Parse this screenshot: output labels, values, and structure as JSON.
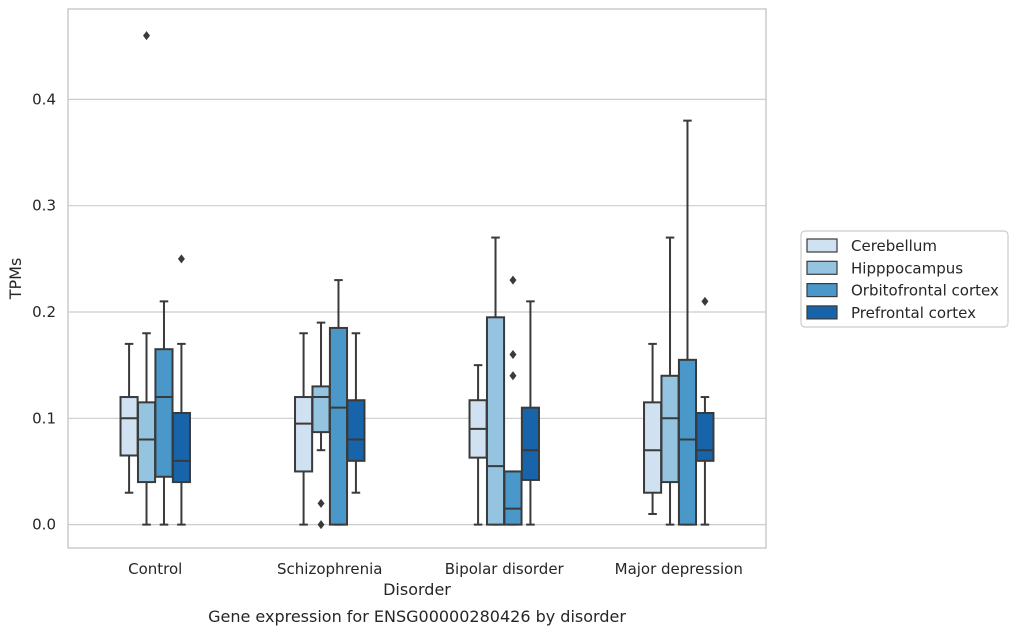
{
  "chart_data": {
    "type": "box",
    "xlabel": "Disorder",
    "ylabel": "TPMs",
    "caption": "Gene expression for ENSG00000280426 by disorder",
    "ylim": [
      -0.022,
      0.485
    ],
    "yticks": [
      "0.0",
      "0.1",
      "0.2",
      "0.3",
      "0.4"
    ],
    "ytick_values": [
      0.0,
      0.1,
      0.2,
      0.3,
      0.4
    ],
    "grid": "horizontal",
    "legend_position": "right",
    "categories": [
      "Control",
      "Schizophrenia",
      "Bipolar disorder",
      "Major depression"
    ],
    "series": [
      {
        "name": "Cerebellum",
        "color": "#d0e1f2",
        "boxes": [
          {
            "whislo": 0.03,
            "q1": 0.065,
            "med": 0.1,
            "q3": 0.12,
            "whishi": 0.17,
            "fliers": []
          },
          {
            "whislo": 0.0,
            "q1": 0.05,
            "med": 0.095,
            "q3": 0.12,
            "whishi": 0.18,
            "fliers": []
          },
          {
            "whislo": 0.0,
            "q1": 0.063,
            "med": 0.09,
            "q3": 0.117,
            "whishi": 0.15,
            "fliers": []
          },
          {
            "whislo": 0.01,
            "q1": 0.03,
            "med": 0.07,
            "q3": 0.115,
            "whishi": 0.17,
            "fliers": []
          }
        ]
      },
      {
        "name": "Hipppocampus",
        "color": "#94c4df",
        "boxes": [
          {
            "whislo": 0.0,
            "q1": 0.04,
            "med": 0.08,
            "q3": 0.115,
            "whishi": 0.18,
            "fliers": [
              0.46
            ]
          },
          {
            "whislo": 0.07,
            "q1": 0.087,
            "med": 0.12,
            "q3": 0.13,
            "whishi": 0.19,
            "fliers": [
              0.02,
              0.0
            ]
          },
          {
            "whislo": 0.0,
            "q1": 0.0,
            "med": 0.055,
            "q3": 0.195,
            "whishi": 0.27,
            "fliers": []
          },
          {
            "whislo": 0.0,
            "q1": 0.04,
            "med": 0.1,
            "q3": 0.14,
            "whishi": 0.27,
            "fliers": []
          }
        ]
      },
      {
        "name": "Orbitofrontal cortex",
        "color": "#4a98c9",
        "boxes": [
          {
            "whislo": 0.0,
            "q1": 0.045,
            "med": 0.12,
            "q3": 0.165,
            "whishi": 0.21,
            "fliers": []
          },
          {
            "whislo": 0.0,
            "q1": 0.0,
            "med": 0.11,
            "q3": 0.185,
            "whishi": 0.23,
            "fliers": []
          },
          {
            "whislo": 0.0,
            "q1": 0.0,
            "med": 0.015,
            "q3": 0.05,
            "whishi": 0.05,
            "fliers": [
              0.23,
              0.16,
              0.14
            ]
          },
          {
            "whislo": 0.0,
            "q1": 0.0,
            "med": 0.08,
            "q3": 0.155,
            "whishi": 0.38,
            "fliers": []
          }
        ]
      },
      {
        "name": "Prefrontal cortex",
        "color": "#1764ab",
        "boxes": [
          {
            "whislo": 0.0,
            "q1": 0.04,
            "med": 0.06,
            "q3": 0.105,
            "whishi": 0.17,
            "fliers": [
              0.25
            ]
          },
          {
            "whislo": 0.03,
            "q1": 0.06,
            "med": 0.08,
            "q3": 0.117,
            "whishi": 0.18,
            "fliers": []
          },
          {
            "whislo": 0.0,
            "q1": 0.042,
            "med": 0.07,
            "q3": 0.11,
            "whishi": 0.21,
            "fliers": []
          },
          {
            "whislo": 0.0,
            "q1": 0.06,
            "med": 0.07,
            "q3": 0.105,
            "whishi": 0.12,
            "fliers": [
              0.21
            ]
          }
        ]
      }
    ]
  }
}
